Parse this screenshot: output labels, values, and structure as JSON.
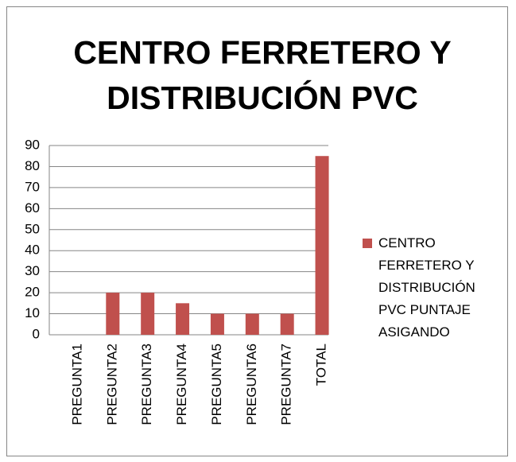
{
  "chart_data": {
    "type": "bar",
    "title": "CENTRO FERRETERO Y DISTRIBUCIÓN PVC",
    "categories": [
      "PREGUNTA1",
      "PREGUNTA2",
      "PREGUNTA3",
      "PREGUNTA4",
      "PREGUNTA5",
      "PREGUNTA6",
      "PREGUNTA7",
      "TOTAL"
    ],
    "series": [
      {
        "name": "CENTRO FERRETERO Y DISTRIBUCIÓN PVC PUNTAJE ASIGANDO",
        "color": "#c0504d",
        "values": [
          0,
          20,
          20,
          15,
          10,
          10,
          10,
          85
        ]
      }
    ],
    "ylim": [
      0,
      90
    ],
    "yticks": [
      0,
      10,
      20,
      30,
      40,
      50,
      60,
      70,
      80,
      90
    ],
    "grid": true,
    "legend": "right"
  }
}
